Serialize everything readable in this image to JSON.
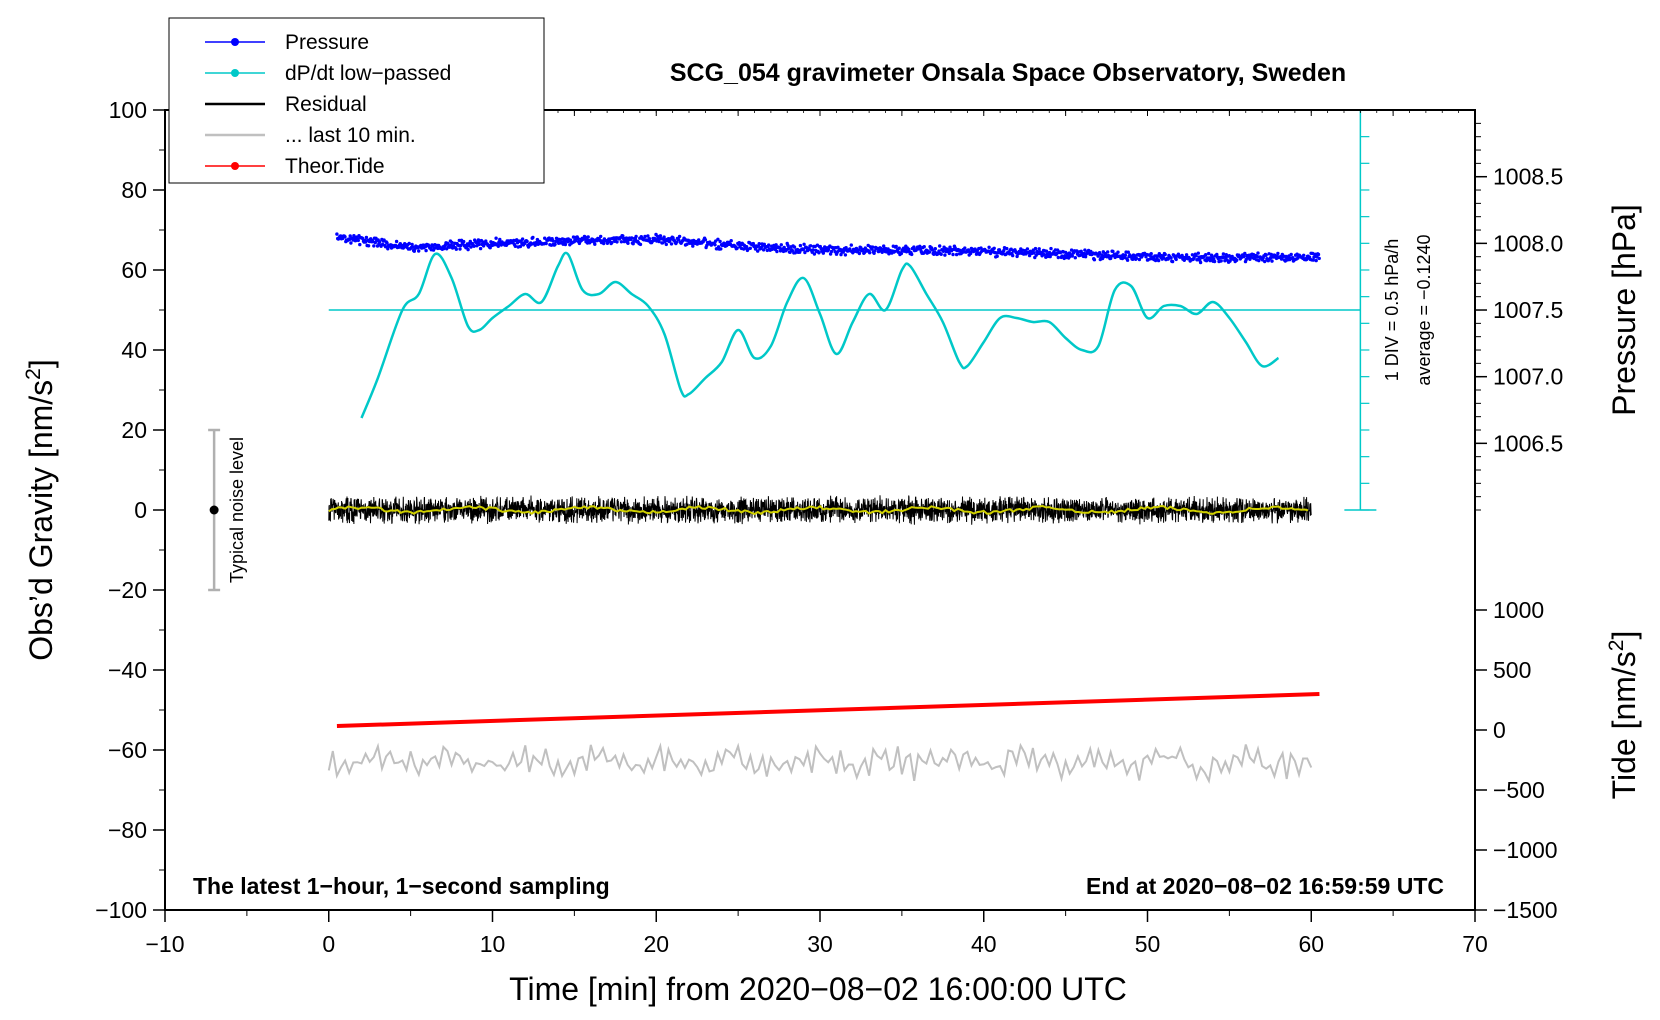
{
  "chart_data": {
    "type": "line",
    "title": "SCG_054 gravimeter Onsala Space Observatory, Sweden",
    "xlabel": "Time [min] from 2020−08−02 16:00:00 UTC",
    "ylabel_left": "Obs’d Gravity [nm/s²]",
    "ylabel_left_main": "Obs’d Gravity [nm/s",
    "ylabel_left_sup": "2",
    "ylabel_left_end": "]",
    "ylabel_right_pressure": "Pressure [hPa]",
    "ylabel_right_tide": "Tide [nm/s²]",
    "ylabel_right_tide_main": "Tide [nm/s",
    "ylabel_right_tide_sup": "2",
    "ylabel_right_tide_end": "]",
    "xlim": [
      -10,
      70
    ],
    "ylim_left": [
      -100,
      100
    ],
    "x_ticks": [
      "−10",
      "0",
      "10",
      "20",
      "30",
      "40",
      "50",
      "60",
      "70"
    ],
    "x_tick_values": [
      -10,
      0,
      10,
      20,
      30,
      40,
      50,
      60,
      70
    ],
    "y_left_ticks": [
      "100",
      "80",
      "60",
      "40",
      "20",
      "0",
      "−20",
      "−40",
      "−60",
      "−80",
      "−100"
    ],
    "y_left_tick_values": [
      100,
      80,
      60,
      40,
      20,
      0,
      -20,
      -40,
      -60,
      -80,
      -100
    ],
    "pressure_ticks": [
      "1008.5",
      "1008.0",
      "1007.5",
      "1007.0",
      "1006.5"
    ],
    "pressure_tick_values": [
      1008.5,
      1008.0,
      1007.5,
      1007.0,
      1006.5
    ],
    "pressure_mapping": {
      "value_at_gravity_0": 1006.0,
      "gravity_per_hpa": 33.33
    },
    "tide_ticks": [
      "1000",
      "500",
      "0",
      "−500",
      "−1000",
      "−1500"
    ],
    "tide_tick_values": [
      1000,
      500,
      0,
      -500,
      -1000,
      -1500
    ],
    "tide_mapping": {
      "value_at_gravity_minus_100": -1500,
      "gravity_per_unit": 0.03
    },
    "legend": [
      {
        "label": "Pressure",
        "color": "#0000ff",
        "marker": true
      },
      {
        "label": "dP/dt low−passed",
        "color": "#00c8c8",
        "marker": true
      },
      {
        "label": "Residual",
        "color": "#000000",
        "marker": false
      },
      {
        "label": "... last 10 min.",
        "color": "#c0c0c0",
        "marker": false
      },
      {
        "label": "Theor.Tide",
        "color": "#ff0000",
        "marker": true
      }
    ],
    "series": [
      {
        "name": "Pressure",
        "unit": "hPa",
        "color": "#0000ff",
        "x": [
          0.5,
          5,
          10,
          15,
          20,
          25,
          30,
          35,
          40,
          45,
          50,
          55,
          60.5
        ],
        "values": [
          1008.05,
          1007.97,
          1008.0,
          1008.02,
          1008.03,
          1007.98,
          1007.95,
          1007.95,
          1007.94,
          1007.92,
          1007.9,
          1007.89,
          1007.9
        ]
      },
      {
        "name": "dP/dt low-passed",
        "unit": "gravity-scale",
        "color": "#00c8c8",
        "x": [
          2,
          3,
          4.5,
          5.5,
          6.5,
          7.5,
          8.5,
          9.2,
          10,
          11,
          12,
          13,
          14,
          14.6,
          15.5,
          16.5,
          17.5,
          18.5,
          19.5,
          20.5,
          21.5,
          22,
          23,
          24,
          25,
          26,
          27,
          28,
          29,
          30,
          31,
          32,
          33,
          34,
          35,
          35.5,
          36.5,
          37.5,
          38.5,
          39,
          40,
          41,
          42,
          43,
          44,
          45,
          46,
          47,
          48,
          49,
          50,
          51,
          52,
          53,
          54,
          55,
          56,
          57,
          58
        ],
        "values": [
          23,
          33,
          50,
          54,
          64,
          58,
          46,
          45,
          48,
          51,
          54,
          52,
          61,
          64,
          55,
          54,
          57,
          54,
          51,
          44,
          30,
          29,
          33,
          37,
          45,
          38,
          41,
          52,
          58,
          49,
          39,
          47,
          54,
          50,
          60,
          61,
          54,
          47,
          37,
          36,
          42,
          48,
          48,
          47,
          47,
          43,
          40,
          41,
          55,
          56,
          48,
          51,
          51,
          49,
          52,
          48,
          42,
          36,
          38
        ]
      },
      {
        "name": "Residual",
        "unit": "nm/s²",
        "color": "#000000",
        "x_start": 0,
        "x_end": 60,
        "mean": 0,
        "amplitude": 3
      },
      {
        "name": "... last 10 min.",
        "unit": "nm/s²",
        "color": "#c0c0c0",
        "x_start": 0,
        "x_end": 60,
        "mean": -63,
        "amplitude": 3
      },
      {
        "name": "Theor.Tide",
        "unit": "nm/s²",
        "color": "#ff0000",
        "x": [
          0.5,
          60.5
        ],
        "values": [
          -54,
          -46
        ]
      }
    ],
    "reference_line": {
      "y": 50,
      "x_range": [
        0,
        63
      ],
      "color": "#00c8c8"
    },
    "dpdt_scale_bar": {
      "x": 63,
      "y_range": [
        0,
        100
      ],
      "tick_step": 6.667
    },
    "noise_bar": {
      "x": -7,
      "y_range": [
        -20,
        20
      ],
      "label": "Typical noise level"
    },
    "annotations": {
      "bottom_left": "The latest 1−hour, 1−second sampling",
      "bottom_right": "End at 2020−08−02 16:59:59 UTC",
      "div_label": "1 DIV = 0.5 hPa/h",
      "average_label": "average = −0.1240"
    }
  }
}
